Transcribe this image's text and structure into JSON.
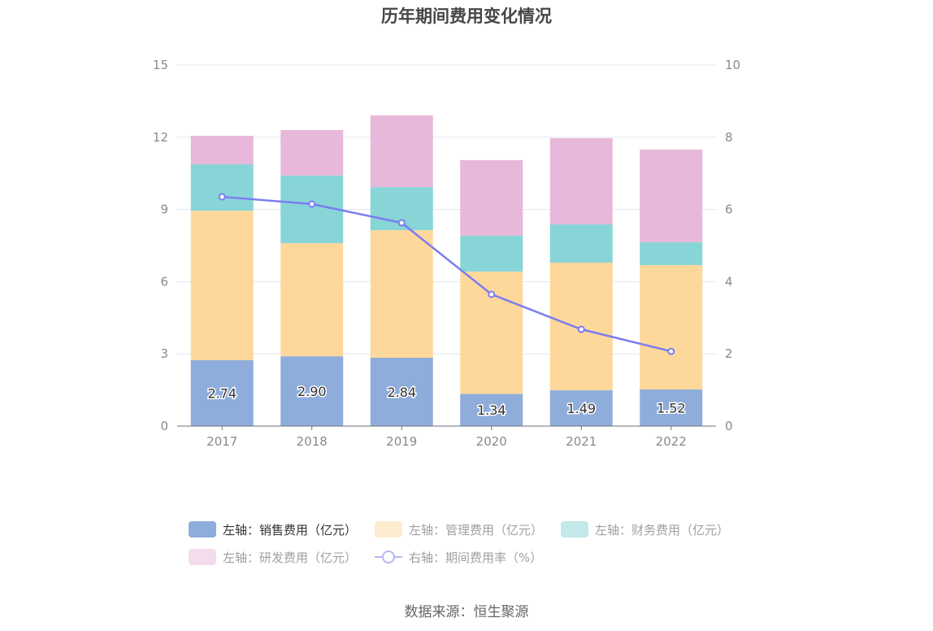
{
  "chart_data": {
    "type": "bar",
    "stacked": true,
    "title": "历年期间费用变化情况",
    "categories": [
      "2017",
      "2018",
      "2019",
      "2020",
      "2021",
      "2022"
    ],
    "left_axis": {
      "ylim": [
        0,
        15
      ],
      "ticks": [
        "0",
        "3",
        "6",
        "9",
        "12",
        "15"
      ]
    },
    "right_axis": {
      "ylim": [
        0,
        10
      ],
      "ticks": [
        "0",
        "2",
        "4",
        "6",
        "8",
        "10"
      ]
    },
    "grid": true,
    "series": [
      {
        "name": "左轴：销售费用（亿元）",
        "axis": "left",
        "type": "bar",
        "color": "#8eaddb",
        "values": [
          2.74,
          2.9,
          2.84,
          1.34,
          1.49,
          1.52
        ],
        "labels": [
          "2.74",
          "2.90",
          "2.84",
          "1.34",
          "1.49",
          "1.52"
        ],
        "legend_color": "#8eaddb",
        "active": true
      },
      {
        "name": "左轴：管理费用（亿元）",
        "axis": "left",
        "type": "bar",
        "color": "#fed89b",
        "values": [
          6.21,
          4.7,
          5.3,
          5.08,
          5.3,
          5.17
        ],
        "legend_color": "#feecd0",
        "active": false
      },
      {
        "name": "左轴：财务费用（亿元）",
        "axis": "left",
        "type": "bar",
        "color": "#88d5d8",
        "values": [
          1.93,
          2.81,
          1.79,
          1.49,
          1.59,
          0.95
        ],
        "legend_color": "#c3eaeb",
        "active": false
      },
      {
        "name": "左轴：研发费用（亿元）",
        "axis": "left",
        "type": "bar",
        "color": "#e7b8d9",
        "values": [
          1.18,
          1.89,
          2.98,
          3.14,
          3.58,
          3.85
        ],
        "legend_color": "#f3dcec",
        "active": false
      },
      {
        "name": "右轴：期间费用率（%）",
        "axis": "right",
        "type": "line",
        "color": "#7b7cf1",
        "values": [
          6.35,
          6.15,
          5.63,
          3.65,
          2.68,
          2.07
        ],
        "legend_color": "#b8b7f7",
        "active": false
      }
    ],
    "legend": "bottom"
  },
  "source": "数据来源：恒生聚源"
}
